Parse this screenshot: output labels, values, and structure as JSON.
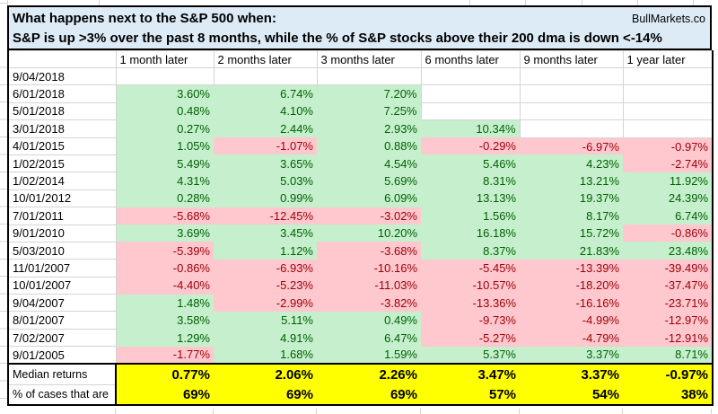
{
  "header": {
    "title": "What happens next to the S&P 500 when:",
    "brand": "BullMarkets.co",
    "subtitle": "S&P is up >3% over the past 8 months, while the % of S&P stocks above their 200 dma is down <-14%"
  },
  "table": {
    "columns": [
      "1 month later",
      "2 months later",
      "3 months later",
      "6 months later",
      "9 months later",
      "1 year later"
    ],
    "rows": [
      {
        "date": "9/04/2018",
        "values": [
          "",
          "",
          "",
          "",
          "",
          ""
        ]
      },
      {
        "date": "6/01/2018",
        "values": [
          "3.60%",
          "6.74%",
          "7.20%",
          "",
          "",
          ""
        ]
      },
      {
        "date": "5/01/2018",
        "values": [
          "0.48%",
          "4.10%",
          "7.25%",
          "",
          "",
          ""
        ]
      },
      {
        "date": "3/01/2018",
        "values": [
          "0.27%",
          "2.44%",
          "2.93%",
          "10.34%",
          "",
          ""
        ]
      },
      {
        "date": "4/01/2015",
        "values": [
          "1.05%",
          "-1.07%",
          "0.88%",
          "-0.29%",
          "-6.97%",
          "-0.97%"
        ]
      },
      {
        "date": "1/02/2015",
        "values": [
          "5.49%",
          "3.65%",
          "4.54%",
          "5.46%",
          "4.23%",
          "-2.74%"
        ]
      },
      {
        "date": "1/02/2014",
        "values": [
          "4.31%",
          "5.03%",
          "5.69%",
          "8.31%",
          "13.21%",
          "11.92%"
        ]
      },
      {
        "date": "10/01/2012",
        "values": [
          "0.28%",
          "0.99%",
          "6.09%",
          "13.13%",
          "19.37%",
          "24.39%"
        ]
      },
      {
        "date": "7/01/2011",
        "values": [
          "-5.68%",
          "-12.45%",
          "-3.02%",
          "1.56%",
          "8.17%",
          "6.74%"
        ]
      },
      {
        "date": "9/01/2010",
        "values": [
          "3.69%",
          "3.45%",
          "10.20%",
          "16.18%",
          "15.72%",
          "-0.86%"
        ]
      },
      {
        "date": "5/03/2010",
        "values": [
          "-5.39%",
          "1.12%",
          "-3.68%",
          "8.37%",
          "21.83%",
          "23.48%"
        ]
      },
      {
        "date": "11/01/2007",
        "values": [
          "-0.86%",
          "-6.93%",
          "-10.16%",
          "-5.45%",
          "-13.39%",
          "-39.49%"
        ]
      },
      {
        "date": "10/01/2007",
        "values": [
          "-4.40%",
          "-5.23%",
          "-11.03%",
          "-10.57%",
          "-18.20%",
          "-37.47%"
        ]
      },
      {
        "date": "9/04/2007",
        "values": [
          "1.48%",
          "-2.99%",
          "-3.82%",
          "-13.36%",
          "-16.16%",
          "-23.71%"
        ]
      },
      {
        "date": "8/01/2007",
        "values": [
          "3.58%",
          "5.11%",
          "0.49%",
          "-9.73%",
          "-4.99%",
          "-12.97%"
        ]
      },
      {
        "date": "7/02/2007",
        "values": [
          "1.29%",
          "4.91%",
          "6.47%",
          "-5.27%",
          "-4.79%",
          "-12.91%"
        ]
      },
      {
        "date": "9/01/2005",
        "values": [
          "-1.77%",
          "1.68%",
          "1.59%",
          "5.37%",
          "3.37%",
          "8.71%"
        ]
      }
    ],
    "summary_rows": [
      {
        "label": "Median returns",
        "values": [
          "0.77%",
          "2.06%",
          "2.26%",
          "3.47%",
          "3.37%",
          "-0.97%"
        ]
      },
      {
        "label": "% of cases that are",
        "values": [
          "69%",
          "69%",
          "69%",
          "57%",
          "54%",
          "38%"
        ]
      }
    ]
  },
  "colors": {
    "title_bg": "#DDEBF7",
    "positive_bg": "#C6EFCE",
    "positive_text": "#006100",
    "negative_bg": "#FFC7CE",
    "negative_text": "#9C0006",
    "summary_bg": "#FFFF00",
    "gridline": "#D4D4D4"
  }
}
